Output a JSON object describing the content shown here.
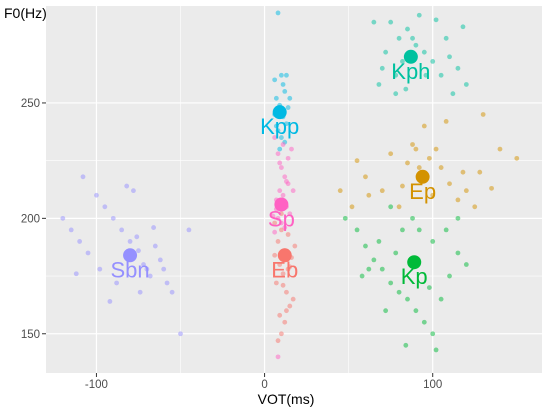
{
  "chart_data": {
    "type": "scatter",
    "title": "",
    "xlabel": "VOT(ms)",
    "ylabel": "F0(Hz)",
    "xlim": [
      -130,
      165
    ],
    "ylim": [
      133,
      292
    ],
    "xticks": [
      -100,
      0,
      100
    ],
    "yticks": [
      150,
      200,
      250
    ],
    "x_tick_labels": [
      "-100",
      "0",
      "100"
    ],
    "y_tick_labels": [
      "150",
      "200",
      "250"
    ],
    "grid": true,
    "panel_color": "#EBEBEB",
    "series": [
      {
        "name": "Eb",
        "color": "#F8766D",
        "centroid": [
          12,
          184
        ],
        "points": [
          [
            6,
            198
          ],
          [
            10,
            202
          ],
          [
            8,
            190
          ],
          [
            14,
            193
          ],
          [
            12,
            186
          ],
          [
            9,
            180
          ],
          [
            16,
            183
          ],
          [
            11,
            176
          ],
          [
            7,
            172
          ],
          [
            13,
            168
          ],
          [
            15,
            162
          ],
          [
            9,
            158
          ],
          [
            12,
            155
          ],
          [
            17,
            165
          ],
          [
            10,
            150
          ],
          [
            8,
            147
          ],
          [
            14,
            178
          ],
          [
            18,
            188
          ],
          [
            6,
            184
          ],
          [
            11,
            171
          ],
          [
            13,
            160
          ],
          [
            10,
            195
          ],
          [
            15,
            179
          ]
        ]
      },
      {
        "name": "Ep",
        "color": "#D39200",
        "centroid": [
          94,
          218
        ],
        "points": [
          [
            70,
            212
          ],
          [
            80,
            205
          ],
          [
            85,
            224
          ],
          [
            90,
            230
          ],
          [
            98,
            226
          ],
          [
            105,
            222
          ],
          [
            110,
            215
          ],
          [
            115,
            208
          ],
          [
            120,
            212
          ],
          [
            128,
            220
          ],
          [
            140,
            230
          ],
          [
            150,
            226
          ],
          [
            100,
            210
          ],
          [
            75,
            228
          ],
          [
            60,
            218
          ],
          [
            55,
            225
          ],
          [
            88,
            232
          ],
          [
            95,
            240
          ],
          [
            102,
            230
          ],
          [
            108,
            242
          ],
          [
            130,
            245
          ],
          [
            62,
            210
          ],
          [
            52,
            205
          ],
          [
            45,
            212
          ],
          [
            135,
            213
          ],
          [
            125,
            205
          ],
          [
            82,
            214
          ],
          [
            92,
            222
          ],
          [
            118,
            220
          ]
        ]
      },
      {
        "name": "Kp",
        "color": "#00BA38",
        "centroid": [
          89,
          181
        ],
        "points": [
          [
            55,
            195
          ],
          [
            60,
            188
          ],
          [
            65,
            182
          ],
          [
            70,
            178
          ],
          [
            75,
            172
          ],
          [
            80,
            168
          ],
          [
            85,
            165
          ],
          [
            90,
            160
          ],
          [
            95,
            155
          ],
          [
            100,
            150
          ],
          [
            105,
            165
          ],
          [
            110,
            175
          ],
          [
            115,
            185
          ],
          [
            120,
            180
          ],
          [
            100,
            190
          ],
          [
            92,
            195
          ],
          [
            78,
            185
          ],
          [
            68,
            190
          ],
          [
            58,
            175
          ],
          [
            72,
            160
          ],
          [
            84,
            145
          ],
          [
            102,
            143
          ],
          [
            98,
            170
          ],
          [
            88,
            200
          ],
          [
            108,
            195
          ],
          [
            62,
            178
          ],
          [
            75,
            205
          ],
          [
            82,
            195
          ],
          [
            115,
            200
          ],
          [
            48,
            200
          ]
        ]
      },
      {
        "name": "Kph",
        "color": "#00C19F",
        "centroid": [
          87,
          270
        ],
        "points": [
          [
            75,
            285
          ],
          [
            80,
            278
          ],
          [
            85,
            282
          ],
          [
            90,
            275
          ],
          [
            95,
            272
          ],
          [
            100,
            268
          ],
          [
            105,
            262
          ],
          [
            110,
            270
          ],
          [
            115,
            265
          ],
          [
            120,
            258
          ],
          [
            70,
            265
          ],
          [
            68,
            258
          ],
          [
            72,
            272
          ],
          [
            78,
            262
          ],
          [
            82,
            268
          ],
          [
            92,
            288
          ],
          [
            102,
            286
          ],
          [
            118,
            283
          ],
          [
            65,
            285
          ],
          [
            88,
            278
          ],
          [
            96,
            262
          ],
          [
            108,
            278
          ],
          [
            84,
            256
          ],
          [
            112,
            254
          ],
          [
            78,
            254
          ]
        ]
      },
      {
        "name": "Kpp",
        "color": "#00B9E3",
        "centroid": [
          9,
          246
        ],
        "points": [
          [
            8,
            289
          ],
          [
            6,
            260
          ],
          [
            10,
            262
          ],
          [
            12,
            255
          ],
          [
            7,
            252
          ],
          [
            9,
            249
          ],
          [
            11,
            244
          ],
          [
            13,
            241
          ],
          [
            8,
            238
          ],
          [
            10,
            235
          ],
          [
            12,
            233
          ],
          [
            14,
            248
          ],
          [
            15,
            252
          ],
          [
            6,
            245
          ],
          [
            9,
            230
          ],
          [
            11,
            258
          ],
          [
            13,
            262
          ],
          [
            7,
            240
          ]
        ]
      },
      {
        "name": "Sbn",
        "color": "#9590FF",
        "centroid": [
          -80,
          184
        ],
        "points": [
          [
            -120,
            200
          ],
          [
            -115,
            195
          ],
          [
            -110,
            190
          ],
          [
            -105,
            185
          ],
          [
            -100,
            210
          ],
          [
            -95,
            205
          ],
          [
            -90,
            200
          ],
          [
            -85,
            195
          ],
          [
            -80,
            190
          ],
          [
            -75,
            186
          ],
          [
            -72,
            180
          ],
          [
            -70,
            178
          ],
          [
            -68,
            175
          ],
          [
            -65,
            188
          ],
          [
            -62,
            182
          ],
          [
            -60,
            178
          ],
          [
            -58,
            172
          ],
          [
            -55,
            168
          ],
          [
            -50,
            150
          ],
          [
            -45,
            195
          ],
          [
            -78,
            212
          ],
          [
            -82,
            214
          ],
          [
            -92,
            164
          ],
          [
            -98,
            178
          ],
          [
            -88,
            172
          ],
          [
            -66,
            196
          ],
          [
            -74,
            168
          ],
          [
            -76,
            192
          ],
          [
            -108,
            218
          ],
          [
            -112,
            176
          ]
        ]
      },
      {
        "name": "Sp",
        "color": "#FF61C3",
        "centroid": [
          10,
          206
        ],
        "points": [
          [
            6,
            235
          ],
          [
            8,
            228
          ],
          [
            10,
            222
          ],
          [
            12,
            218
          ],
          [
            14,
            215
          ],
          [
            9,
            212
          ],
          [
            11,
            210
          ],
          [
            7,
            208
          ],
          [
            13,
            205
          ],
          [
            15,
            202
          ],
          [
            8,
            200
          ],
          [
            10,
            198
          ],
          [
            12,
            196
          ],
          [
            6,
            194
          ],
          [
            9,
            224
          ],
          [
            14,
            226
          ],
          [
            16,
            230
          ],
          [
            11,
            232
          ],
          [
            7,
            204
          ],
          [
            13,
            216
          ],
          [
            17,
            212
          ],
          [
            5,
            201
          ],
          [
            8,
            140
          ]
        ]
      }
    ]
  }
}
